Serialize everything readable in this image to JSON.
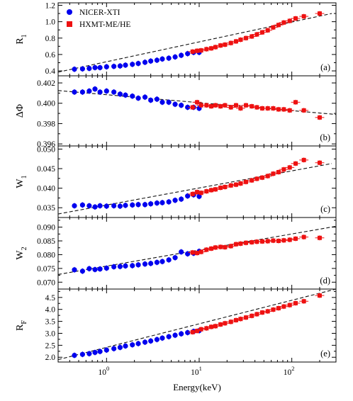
{
  "chart_data": {
    "type": "scatter",
    "xlabel": "Energy(keV)",
    "xscale": "log",
    "xlim": [
      0.3,
      300
    ],
    "x_ticks": [
      {
        "value": 1,
        "label": "10",
        "sup": "0"
      },
      {
        "value": 10,
        "label": "10",
        "sup": "1"
      },
      {
        "value": 100,
        "label": "10",
        "sup": "2"
      }
    ],
    "legend": {
      "placement": "top-left",
      "entries": [
        {
          "label": "NICER-XTI",
          "marker": "circle",
          "color": "#0000ee"
        },
        {
          "label": "HXMT-ME/HE",
          "marker": "square",
          "color": "#ee1111"
        }
      ]
    },
    "panels": [
      {
        "tag": "(a)",
        "ylabel": "R",
        "ylabel_sub": "1",
        "ylim": [
          0.34,
          1.23
        ],
        "yticks": [
          0.4,
          0.6,
          0.8,
          1.0,
          1.2
        ],
        "ytick_labels": [
          "0.4",
          "0.6",
          "0.8",
          "1.0",
          "1.2"
        ],
        "fit_line": {
          "x": [
            0.3,
            270
          ],
          "y": [
            0.385,
            1.1
          ]
        },
        "series": [
          {
            "name": "NICER-XTI",
            "x": [
              0.45,
              0.55,
              0.65,
              0.75,
              0.85,
              1.0,
              1.2,
              1.4,
              1.6,
              1.9,
              2.2,
              2.6,
              3.0,
              3.5,
              4.0,
              4.7,
              5.5,
              6.4,
              7.5,
              8.7,
              10.0
            ],
            "y": [
              0.42,
              0.425,
              0.43,
              0.44,
              0.44,
              0.45,
              0.455,
              0.46,
              0.47,
              0.48,
              0.49,
              0.505,
              0.52,
              0.53,
              0.545,
              0.555,
              0.57,
              0.59,
              0.61,
              0.625,
              0.625
            ]
          },
          {
            "name": "HXMT-ME/HE",
            "x": [
              8.5,
              9.5,
              10.5,
              12,
              13.5,
              15,
              17,
              19,
              22,
              25,
              28,
              32,
              37,
              42,
              48,
              55,
              63,
              72,
              82,
              95,
              110,
              135,
              200
            ],
            "y": [
              0.635,
              0.645,
              0.65,
              0.665,
              0.675,
              0.69,
              0.71,
              0.72,
              0.74,
              0.76,
              0.78,
              0.8,
              0.82,
              0.845,
              0.87,
              0.895,
              0.93,
              0.96,
              0.99,
              1.01,
              1.04,
              1.065,
              1.1
            ]
          }
        ]
      },
      {
        "tag": "(b)",
        "ylabel": "ΔΦ",
        "ylabel_sub": "",
        "ylim": [
          0.3958,
          0.4027
        ],
        "yticks": [
          0.396,
          0.398,
          0.4,
          0.402
        ],
        "ytick_labels": [
          "0.396",
          "0.398",
          "0.400",
          "0.402"
        ],
        "fit_line": {
          "x": [
            0.3,
            300
          ],
          "y": [
            0.40125,
            0.3989
          ]
        },
        "series": [
          {
            "name": "NICER-XTI",
            "x": [
              0.45,
              0.55,
              0.65,
              0.75,
              0.85,
              1.0,
              1.2,
              1.4,
              1.6,
              1.9,
              2.2,
              2.6,
              3.0,
              3.5,
              4.0,
              4.7,
              5.5,
              6.4,
              7.5,
              8.7,
              10.0
            ],
            "y": [
              0.4011,
              0.4011,
              0.4012,
              0.4014,
              0.4011,
              0.4012,
              0.4011,
              0.4009,
              0.4008,
              0.4007,
              0.4005,
              0.4006,
              0.4003,
              0.4004,
              0.4001,
              0.4001,
              0.3999,
              0.3998,
              0.3996,
              0.3996,
              0.3995
            ]
          },
          {
            "name": "HXMT-ME/HE",
            "x": [
              8.5,
              9.5,
              10.5,
              12,
              13.5,
              15,
              17,
              19,
              22,
              25,
              28,
              32,
              37,
              42,
              48,
              55,
              63,
              72,
              82,
              95,
              110,
              135,
              200
            ],
            "y": [
              0.3996,
              0.4001,
              0.3998,
              0.3998,
              0.3997,
              0.3998,
              0.3997,
              0.3998,
              0.3996,
              0.3998,
              0.3995,
              0.3998,
              0.3997,
              0.3996,
              0.3995,
              0.3995,
              0.3995,
              0.3994,
              0.3994,
              0.3993,
              0.4001,
              0.3993,
              0.3986
            ]
          }
        ]
      },
      {
        "tag": "(c)",
        "ylabel": "W",
        "ylabel_sub": "1",
        "ylim": [
          0.0325,
          0.0508
        ],
        "yticks": [
          0.035,
          0.04,
          0.045,
          0.05
        ],
        "ytick_labels": [
          "0.035",
          "0.040",
          "0.045",
          "0.050"
        ],
        "fit_line": {
          "x": [
            0.3,
            270
          ],
          "y": [
            0.0334,
            0.0463
          ]
        },
        "series": [
          {
            "name": "NICER-XTI",
            "x": [
              0.45,
              0.55,
              0.65,
              0.75,
              0.85,
              1.0,
              1.2,
              1.4,
              1.6,
              1.9,
              2.2,
              2.6,
              3.0,
              3.5,
              4.0,
              4.7,
              5.5,
              6.4,
              7.5,
              8.7,
              10.0
            ],
            "y": [
              0.0355,
              0.0357,
              0.0355,
              0.0352,
              0.0355,
              0.0354,
              0.0355,
              0.0354,
              0.0356,
              0.0357,
              0.0358,
              0.0358,
              0.036,
              0.0362,
              0.0363,
              0.0365,
              0.0369,
              0.0372,
              0.038,
              0.0383,
              0.0379
            ]
          },
          {
            "name": "HXMT-ME/HE",
            "x": [
              8.5,
              9.5,
              10.5,
              12,
              13.5,
              15,
              17,
              19,
              22,
              25,
              28,
              32,
              37,
              42,
              48,
              55,
              63,
              72,
              82,
              95,
              110,
              135,
              200
            ],
            "y": [
              0.0385,
              0.039,
              0.0388,
              0.0392,
              0.0395,
              0.0397,
              0.0401,
              0.0403,
              0.0407,
              0.0409,
              0.0412,
              0.0416,
              0.042,
              0.0424,
              0.0427,
              0.0431,
              0.0437,
              0.0441,
              0.0448,
              0.0453,
              0.0463,
              0.0472,
              0.0465
            ]
          }
        ]
      },
      {
        "tag": "(d)",
        "ylabel": "W",
        "ylabel_sub": "2",
        "ylim": [
          0.0675,
          0.0935
        ],
        "yticks": [
          0.07,
          0.075,
          0.08,
          0.085,
          0.09
        ],
        "ytick_labels": [
          "0.070",
          "0.075",
          "0.080",
          "0.085",
          "0.090"
        ],
        "fit_line": {
          "x": [
            0.3,
            300
          ],
          "y": [
            0.0728,
            0.0903
          ]
        },
        "series": [
          {
            "name": "NICER-XTI",
            "x": [
              0.45,
              0.55,
              0.65,
              0.75,
              0.85,
              1.0,
              1.2,
              1.4,
              1.6,
              1.9,
              2.2,
              2.6,
              3.0,
              3.5,
              4.0,
              4.7,
              5.5,
              6.4,
              7.5,
              8.7,
              10.0
            ],
            "y": [
              0.0745,
              0.074,
              0.0749,
              0.0746,
              0.0748,
              0.0751,
              0.0756,
              0.0757,
              0.0759,
              0.076,
              0.0763,
              0.0766,
              0.0768,
              0.0772,
              0.0775,
              0.0781,
              0.0789,
              0.081,
              0.0803,
              0.0805,
              0.0812
            ]
          },
          {
            "name": "HXMT-ME/HE",
            "x": [
              8.5,
              9.5,
              10.5,
              12,
              13.5,
              15,
              17,
              19,
              22,
              25,
              28,
              32,
              37,
              42,
              48,
              55,
              63,
              72,
              82,
              95,
              110,
              135,
              200
            ],
            "y": [
              0.0808,
              0.0806,
              0.081,
              0.0818,
              0.0822,
              0.0826,
              0.0828,
              0.0827,
              0.0831,
              0.0838,
              0.084,
              0.0843,
              0.0845,
              0.0847,
              0.0848,
              0.0849,
              0.0851,
              0.085,
              0.0852,
              0.0854,
              0.0858,
              0.0864,
              0.0861
            ]
          }
        ]
      },
      {
        "tag": "(e)",
        "ylabel": "R",
        "ylabel_sub": "F",
        "ylim": [
          1.8,
          4.85
        ],
        "yticks": [
          2.0,
          2.5,
          3.0,
          3.5,
          4.0,
          4.5
        ],
        "ytick_labels": [
          "2.0",
          "2.5",
          "3.0",
          "3.5",
          "4.0",
          "4.5"
        ],
        "fit_line": {
          "x": [
            0.3,
            300
          ],
          "y": [
            1.9,
            4.85
          ]
        },
        "series": [
          {
            "name": "NICER-XTI",
            "x": [
              0.45,
              0.55,
              0.65,
              0.75,
              0.85,
              1.0,
              1.2,
              1.4,
              1.6,
              1.9,
              2.2,
              2.6,
              3.0,
              3.5,
              4.0,
              4.7,
              5.5,
              6.4,
              7.5,
              8.7,
              10.0
            ],
            "y": [
              2.08,
              2.12,
              2.15,
              2.2,
              2.24,
              2.3,
              2.36,
              2.41,
              2.47,
              2.52,
              2.57,
              2.63,
              2.68,
              2.74,
              2.8,
              2.86,
              2.92,
              2.98,
              3.03,
              3.08,
              3.11
            ]
          },
          {
            "name": "HXMT-ME/HE",
            "x": [
              8.5,
              9.5,
              10.5,
              12,
              13.5,
              15,
              17,
              19,
              22,
              25,
              28,
              32,
              37,
              42,
              48,
              55,
              63,
              72,
              82,
              95,
              110,
              135,
              200
            ],
            "y": [
              3.05,
              3.1,
              3.17,
              3.21,
              3.27,
              3.3,
              3.37,
              3.42,
              3.48,
              3.55,
              3.6,
              3.66,
              3.73,
              3.8,
              3.87,
              3.92,
              3.99,
              4.05,
              4.12,
              4.18,
              4.26,
              4.34,
              4.58
            ]
          }
        ]
      }
    ]
  }
}
